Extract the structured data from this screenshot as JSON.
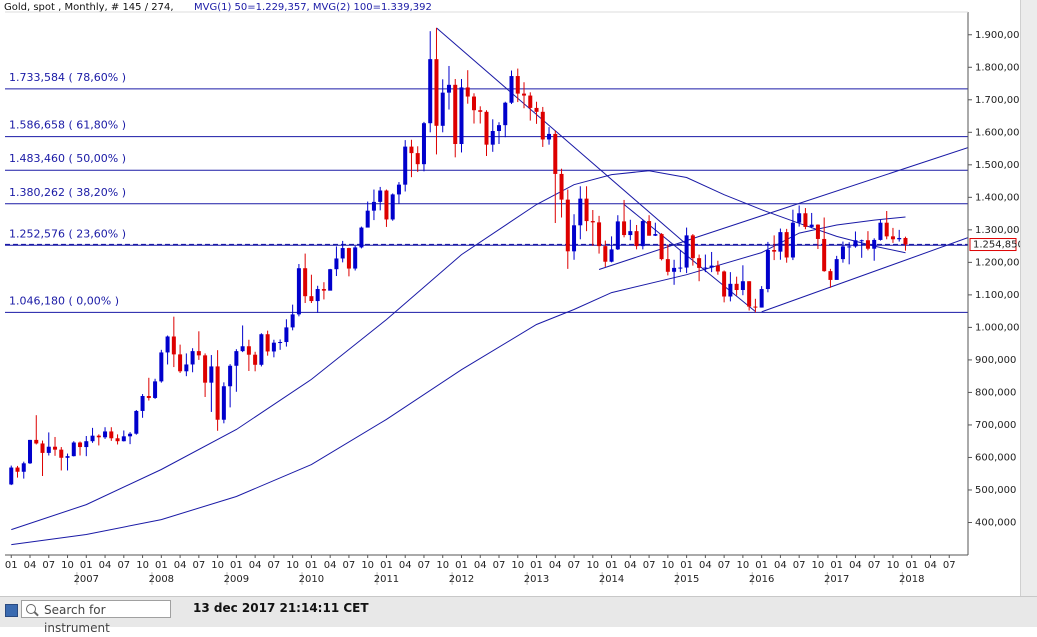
{
  "chart_data": {
    "type": "candlestick",
    "title": "Gold, spot , Monthly, # 145 / 274,",
    "subtitle": "MVG(1) 50=1.229,357, MVG(2) 100=1.339,392",
    "up_color": "#0000cc",
    "down_color": "#dd0000",
    "line_color": "#1a1aa6",
    "x": [
      "2006-01",
      "2006-02",
      "2006-03",
      "2006-04",
      "2006-05",
      "2006-06",
      "2006-07",
      "2006-08",
      "2006-09",
      "2006-10",
      "2006-11",
      "2006-12",
      "2007-01",
      "2007-02",
      "2007-03",
      "2007-04",
      "2007-05",
      "2007-06",
      "2007-07",
      "2007-08",
      "2007-09",
      "2007-10",
      "2007-11",
      "2007-12",
      "2008-01",
      "2008-02",
      "2008-03",
      "2008-04",
      "2008-05",
      "2008-06",
      "2008-07",
      "2008-08",
      "2008-09",
      "2008-10",
      "2008-11",
      "2008-12",
      "2009-01",
      "2009-02",
      "2009-03",
      "2009-04",
      "2009-05",
      "2009-06",
      "2009-07",
      "2009-08",
      "2009-09",
      "2009-10",
      "2009-11",
      "2009-12",
      "2010-01",
      "2010-02",
      "2010-03",
      "2010-04",
      "2010-05",
      "2010-06",
      "2010-07",
      "2010-08",
      "2010-09",
      "2010-10",
      "2010-11",
      "2010-12",
      "2011-01",
      "2011-02",
      "2011-03",
      "2011-04",
      "2011-05",
      "2011-06",
      "2011-07",
      "2011-08",
      "2011-09",
      "2011-10",
      "2011-11",
      "2011-12",
      "2012-01",
      "2012-02",
      "2012-03",
      "2012-04",
      "2012-05",
      "2012-06",
      "2012-07",
      "2012-08",
      "2012-09",
      "2012-10",
      "2012-11",
      "2012-12",
      "2013-01",
      "2013-02",
      "2013-03",
      "2013-04",
      "2013-05",
      "2013-06",
      "2013-07",
      "2013-08",
      "2013-09",
      "2013-10",
      "2013-11",
      "2013-12",
      "2014-01",
      "2014-02",
      "2014-03",
      "2014-04",
      "2014-05",
      "2014-06",
      "2014-07",
      "2014-08",
      "2014-09",
      "2014-10",
      "2014-11",
      "2014-12",
      "2015-01",
      "2015-02",
      "2015-03",
      "2015-04",
      "2015-05",
      "2015-06",
      "2015-07",
      "2015-08",
      "2015-09",
      "2015-10",
      "2015-11",
      "2015-12",
      "2016-01",
      "2016-02",
      "2016-03",
      "2016-04",
      "2016-05",
      "2016-06",
      "2016-07",
      "2016-08",
      "2016-09",
      "2016-10",
      "2016-11",
      "2016-12",
      "2017-01",
      "2017-02",
      "2017-03",
      "2017-04",
      "2017-05",
      "2017-06",
      "2017-07",
      "2017-08",
      "2017-09",
      "2017-10",
      "2017-11",
      "2017-12"
    ],
    "open": [
      517,
      569,
      556,
      582,
      654,
      643,
      614,
      633,
      624,
      599,
      604,
      646,
      632,
      650,
      667,
      662,
      680,
      659,
      650,
      665,
      673,
      743,
      789,
      783,
      834,
      923,
      972,
      917,
      865,
      886,
      927,
      914,
      830,
      880,
      716,
      819,
      882,
      927,
      942,
      916,
      885,
      979,
      926,
      953,
      955,
      1000,
      1040,
      1182,
      1096,
      1081,
      1118,
      1113,
      1179,
      1212,
      1244,
      1181,
      1246,
      1307,
      1359,
      1386,
      1421,
      1332,
      1409,
      1439,
      1556,
      1536,
      1502,
      1628,
      1825,
      1620,
      1722,
      1746,
      1564,
      1738,
      1710,
      1668,
      1663,
      1562,
      1604,
      1622,
      1691,
      1773,
      1719,
      1713,
      1675,
      1663,
      1578,
      1595,
      1472,
      1393,
      1234,
      1314,
      1396,
      1327,
      1323,
      1250,
      1202,
      1240,
      1326,
      1284,
      1296,
      1250,
      1327,
      1282,
      1287,
      1210,
      1171,
      1183,
      1184,
      1283,
      1213,
      1183,
      1184,
      1190,
      1172,
      1095,
      1134,
      1115,
      1142,
      1064,
      1061,
      1118,
      1238,
      1233,
      1293,
      1215,
      1322,
      1351,
      1309,
      1316,
      1272,
      1173,
      1146,
      1210,
      1249,
      1249,
      1268,
      1268,
      1242,
      1269,
      1322,
      1280,
      1271,
      1275
    ],
    "high": [
      575,
      574,
      587,
      654,
      730,
      652,
      677,
      663,
      632,
      612,
      650,
      649,
      666,
      691,
      671,
      693,
      693,
      671,
      683,
      678,
      746,
      795,
      845,
      842,
      931,
      975,
      1033,
      947,
      920,
      936,
      988,
      920,
      915,
      930,
      831,
      887,
      933,
      1006,
      962,
      925,
      982,
      990,
      962,
      963,
      1025,
      1070,
      1195,
      1227,
      1162,
      1128,
      1139,
      1180,
      1249,
      1266,
      1245,
      1251,
      1310,
      1387,
      1424,
      1432,
      1424,
      1412,
      1447,
      1576,
      1577,
      1557,
      1632,
      1911,
      1921,
      1763,
      1804,
      1764,
      1764,
      1791,
      1720,
      1680,
      1668,
      1640,
      1631,
      1694,
      1790,
      1796,
      1754,
      1723,
      1694,
      1678,
      1616,
      1605,
      1488,
      1424,
      1348,
      1434,
      1434,
      1361,
      1343,
      1267,
      1280,
      1345,
      1392,
      1331,
      1315,
      1332,
      1345,
      1322,
      1290,
      1255,
      1208,
      1238,
      1307,
      1287,
      1224,
      1224,
      1232,
      1205,
      1175,
      1170,
      1156,
      1191,
      1142,
      1088,
      1127,
      1263,
      1283,
      1304,
      1303,
      1362,
      1375,
      1367,
      1352,
      1317,
      1338,
      1180,
      1220,
      1264,
      1262,
      1295,
      1270,
      1296,
      1274,
      1331,
      1358,
      1306,
      1300,
      1279
    ],
    "low": [
      515,
      538,
      535,
      580,
      640,
      543,
      606,
      605,
      560,
      560,
      603,
      606,
      604,
      645,
      637,
      657,
      651,
      640,
      649,
      641,
      670,
      722,
      775,
      780,
      830,
      886,
      878,
      860,
      850,
      862,
      900,
      786,
      740,
      682,
      705,
      754,
      802,
      924,
      866,
      865,
      880,
      913,
      908,
      931,
      941,
      991,
      1034,
      1075,
      1075,
      1045,
      1086,
      1114,
      1158,
      1200,
      1157,
      1175,
      1243,
      1314,
      1330,
      1360,
      1309,
      1328,
      1381,
      1418,
      1462,
      1478,
      1480,
      1600,
      1532,
      1600,
      1670,
      1523,
      1538,
      1688,
      1627,
      1627,
      1527,
      1540,
      1564,
      1585,
      1687,
      1693,
      1674,
      1636,
      1626,
      1555,
      1562,
      1321,
      1338,
      1180,
      1208,
      1271,
      1296,
      1251,
      1227,
      1186,
      1200,
      1238,
      1277,
      1268,
      1240,
      1240,
      1282,
      1281,
      1206,
      1160,
      1131,
      1170,
      1167,
      1190,
      1142,
      1170,
      1170,
      1162,
      1077,
      1080,
      1098,
      1099,
      1052,
      1046.18,
      1061,
      1108,
      1207,
      1208,
      1199,
      1207,
      1310,
      1302,
      1305,
      1241,
      1171,
      1122,
      1147,
      1199,
      1194,
      1245,
      1214,
      1237,
      1205,
      1267,
      1271,
      1260,
      1264,
      1236
    ],
    "close": [
      569,
      556,
      582,
      654,
      643,
      614,
      633,
      624,
      599,
      604,
      646,
      632,
      650,
      667,
      662,
      680,
      659,
      650,
      665,
      673,
      743,
      789,
      783,
      834,
      923,
      972,
      917,
      865,
      886,
      927,
      914,
      830,
      880,
      716,
      819,
      882,
      927,
      942,
      916,
      885,
      979,
      926,
      953,
      955,
      1000,
      1040,
      1182,
      1096,
      1081,
      1118,
      1113,
      1179,
      1212,
      1244,
      1181,
      1246,
      1307,
      1359,
      1386,
      1421,
      1332,
      1409,
      1439,
      1556,
      1536,
      1502,
      1628,
      1825,
      1620,
      1722,
      1746,
      1564,
      1738,
      1710,
      1668,
      1663,
      1562,
      1604,
      1622,
      1691,
      1773,
      1719,
      1713,
      1675,
      1663,
      1578,
      1595,
      1472,
      1393,
      1234,
      1314,
      1396,
      1327,
      1323,
      1250,
      1202,
      1240,
      1326,
      1284,
      1296,
      1250,
      1327,
      1282,
      1287,
      1210,
      1171,
      1183,
      1184,
      1283,
      1213,
      1183,
      1184,
      1190,
      1172,
      1095,
      1134,
      1115,
      1142,
      1064,
      1061,
      1118,
      1238,
      1233,
      1293,
      1215,
      1322,
      1351,
      1309,
      1316,
      1272,
      1173,
      1146,
      1210,
      1249,
      1249,
      1268,
      1268,
      1242,
      1269,
      1322,
      1280,
      1271,
      1275,
      1254.85
    ],
    "series": [
      {
        "x": [
          "2006-01",
          "2007-01",
          "2008-01",
          "2009-01",
          "2010-01",
          "2011-01",
          "2012-01",
          "2013-01",
          "2013-07",
          "2014-01",
          "2014-07",
          "2015-01",
          "2015-07",
          "2016-01",
          "2016-07",
          "2017-01",
          "2017-07",
          "2017-12"
        ],
        "values": [
          378,
          455,
          563,
          686,
          840,
          1024,
          1224,
          1378,
          1439,
          1470,
          1482,
          1461,
          1408,
          1362,
          1320,
          1280,
          1250,
          1229.357
        ]
      },
      {
        "x": [
          "2006-01",
          "2007-01",
          "2008-01",
          "2009-01",
          "2010-01",
          "2011-01",
          "2012-01",
          "2013-01",
          "2013-07",
          "2014-01",
          "2015-01",
          "2016-01",
          "2016-07",
          "2017-01",
          "2017-07",
          "2017-12"
        ],
        "values": [
          332,
          363,
          409,
          480,
          578,
          717,
          870,
          1009,
          1055,
          1107,
          1162,
          1230,
          1290,
          1315,
          1330,
          1339.392
        ]
      }
    ],
    "trendlines": [
      {
        "x": [
          "2011-09",
          "2015-01"
        ],
        "y": [
          1921,
          1255
        ]
      },
      {
        "x": [
          "2013-11",
          "2018-10"
        ],
        "y": [
          1178,
          1553
        ]
      },
      {
        "x": [
          "2016-01",
          "2018-10"
        ],
        "y": [
          1048,
          1276
        ]
      },
      {
        "x": [
          "2014-03",
          "2015-12"
        ],
        "y": [
          1378,
          1049
        ]
      }
    ],
    "levels": [
      {
        "value": 1733.584,
        "label": "1.733,584  ( 78,60% )"
      },
      {
        "value": 1586.658,
        "label": "1.586,658  ( 61,80% )"
      },
      {
        "value": 1483.46,
        "label": "1.483,460  ( 50,00% )"
      },
      {
        "value": 1380.262,
        "label": "1.380,262  ( 38,20% )"
      },
      {
        "value": 1252.576,
        "label": "1.252,576  ( 23,60% )"
      },
      {
        "value": 1046.18,
        "label": "1.046,180  ( 0,00% )"
      }
    ],
    "last_price": {
      "value": 1254.85,
      "label": "1.254,850"
    },
    "xlim": [
      "2005-12",
      "2018-10"
    ],
    "ylim": [
      300,
      1970
    ],
    "yticks": [
      {
        "value": 400,
        "label": "400,000"
      },
      {
        "value": 500,
        "label": "500,000"
      },
      {
        "value": 600,
        "label": "600,000"
      },
      {
        "value": 700,
        "label": "700,000"
      },
      {
        "value": 800,
        "label": "800,000"
      },
      {
        "value": 900,
        "label": "900,000"
      },
      {
        "value": 1000,
        "label": "1.000,000"
      },
      {
        "value": 1100,
        "label": "1.100,000"
      },
      {
        "value": 1200,
        "label": "1.200,000"
      },
      {
        "value": 1300,
        "label": "1.300,000"
      },
      {
        "value": 1400,
        "label": "1.400,000"
      },
      {
        "value": 1500,
        "label": "1.500,000"
      },
      {
        "value": 1600,
        "label": "1.600,000"
      },
      {
        "value": 1700,
        "label": "1.700,000"
      },
      {
        "value": 1800,
        "label": "1.800,000"
      },
      {
        "value": 1900,
        "label": "1.900,000"
      }
    ],
    "xticks": [
      {
        "value": "2006-01",
        "label": "01"
      },
      {
        "value": "2006-04",
        "label": "04"
      },
      {
        "value": "2006-07",
        "label": "07"
      },
      {
        "value": "2006-10",
        "label": "10"
      },
      {
        "value": "2007-01",
        "label": "01"
      },
      {
        "value": "2007-04",
        "label": "04"
      },
      {
        "value": "2007-07",
        "label": "07"
      },
      {
        "value": "2007-10",
        "label": "10"
      },
      {
        "value": "2008-01",
        "label": "01"
      },
      {
        "value": "2008-04",
        "label": "04"
      },
      {
        "value": "2008-07",
        "label": "07"
      },
      {
        "value": "2008-10",
        "label": "10"
      },
      {
        "value": "2009-01",
        "label": "01"
      },
      {
        "value": "2009-04",
        "label": "04"
      },
      {
        "value": "2009-07",
        "label": "07"
      },
      {
        "value": "2009-10",
        "label": "10"
      },
      {
        "value": "2010-01",
        "label": "01"
      },
      {
        "value": "2010-04",
        "label": "04"
      },
      {
        "value": "2010-07",
        "label": "07"
      },
      {
        "value": "2010-10",
        "label": "10"
      },
      {
        "value": "2011-01",
        "label": "01"
      },
      {
        "value": "2011-04",
        "label": "04"
      },
      {
        "value": "2011-07",
        "label": "07"
      },
      {
        "value": "2011-10",
        "label": "10"
      },
      {
        "value": "2012-01",
        "label": "01"
      },
      {
        "value": "2012-04",
        "label": "04"
      },
      {
        "value": "2012-07",
        "label": "07"
      },
      {
        "value": "2012-10",
        "label": "10"
      },
      {
        "value": "2013-01",
        "label": "01"
      },
      {
        "value": "2013-04",
        "label": "04"
      },
      {
        "value": "2013-07",
        "label": "07"
      },
      {
        "value": "2013-10",
        "label": "10"
      },
      {
        "value": "2014-01",
        "label": "01"
      },
      {
        "value": "2014-04",
        "label": "04"
      },
      {
        "value": "2014-07",
        "label": "07"
      },
      {
        "value": "2014-10",
        "label": "10"
      },
      {
        "value": "2015-01",
        "label": "01"
      },
      {
        "value": "2015-04",
        "label": "04"
      },
      {
        "value": "2015-07",
        "label": "07"
      },
      {
        "value": "2015-10",
        "label": "10"
      },
      {
        "value": "2016-01",
        "label": "01"
      },
      {
        "value": "2016-04",
        "label": "04"
      },
      {
        "value": "2016-07",
        "label": "07"
      },
      {
        "value": "2016-10",
        "label": "10"
      },
      {
        "value": "2017-01",
        "label": "01"
      },
      {
        "value": "2017-04",
        "label": "04"
      },
      {
        "value": "2017-07",
        "label": "07"
      },
      {
        "value": "2017-10",
        "label": "10"
      },
      {
        "value": "2018-01",
        "label": "01"
      },
      {
        "value": "2018-04",
        "label": "04"
      },
      {
        "value": "2018-07",
        "label": "07"
      }
    ],
    "year_ticks": [
      {
        "value": "2007-01",
        "label": "2007"
      },
      {
        "value": "2008-01",
        "label": "2008"
      },
      {
        "value": "2009-01",
        "label": "2009"
      },
      {
        "value": "2010-01",
        "label": "2010"
      },
      {
        "value": "2011-01",
        "label": "2011"
      },
      {
        "value": "2012-01",
        "label": "2012"
      },
      {
        "value": "2013-01",
        "label": "2013"
      },
      {
        "value": "2014-01",
        "label": "2014"
      },
      {
        "value": "2015-01",
        "label": "2015"
      },
      {
        "value": "2016-01",
        "label": "2016"
      },
      {
        "value": "2017-01",
        "label": "2017"
      },
      {
        "value": "2018-01",
        "label": "2018"
      }
    ]
  },
  "toolbar": {
    "search_placeholder": "Search for instrument",
    "timestamp": "13 dec 2017 21:14:11 CET"
  }
}
